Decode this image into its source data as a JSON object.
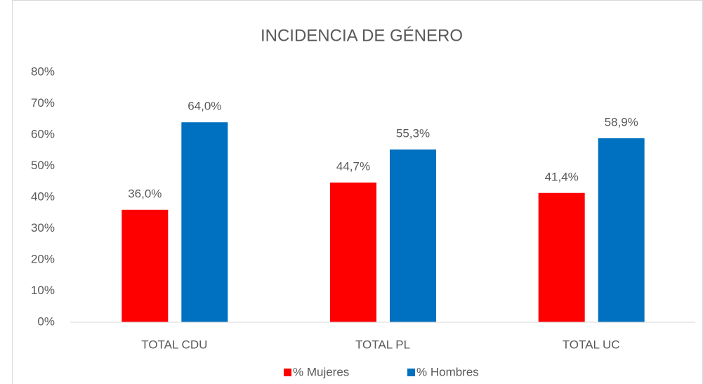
{
  "chart_data": {
    "type": "bar",
    "title": "INCIDENCIA DE GÉNERO",
    "categories": [
      "TOTAL CDU",
      "TOTAL PL",
      "TOTAL UC"
    ],
    "series": [
      {
        "name": "% Mujeres",
        "color": "#ff0000",
        "values": [
          36.0,
          44.7,
          41.4
        ],
        "value_labels": [
          "36,0%",
          "44,7%",
          "41,4%"
        ]
      },
      {
        "name": "% Hombres",
        "color": "#0070c0",
        "values": [
          64.0,
          55.3,
          58.9
        ],
        "value_labels": [
          "64,0%",
          "55,3%",
          "58,9%"
        ]
      }
    ],
    "ylim": [
      0,
      80
    ],
    "yticks": [
      {
        "value": 0,
        "label": "0%"
      },
      {
        "value": 10,
        "label": "10%"
      },
      {
        "value": 20,
        "label": "20%"
      },
      {
        "value": 30,
        "label": "30%"
      },
      {
        "value": 40,
        "label": "40%"
      },
      {
        "value": 50,
        "label": "50%"
      },
      {
        "value": 60,
        "label": "60%"
      },
      {
        "value": 70,
        "label": "70%"
      },
      {
        "value": 80,
        "label": "80%"
      }
    ],
    "grid": false,
    "legend": "bottom"
  }
}
